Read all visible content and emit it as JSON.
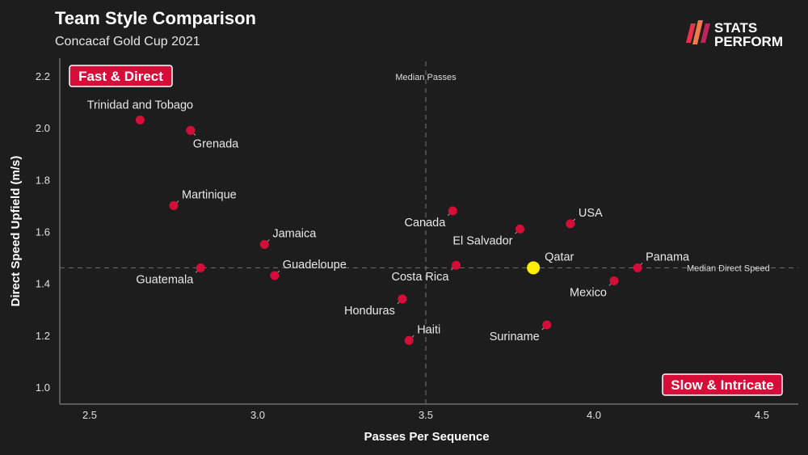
{
  "header": {
    "title": "Team Style Comparison",
    "subtitle": "Concacaf Gold Cup 2021"
  },
  "brand": {
    "line1": "STATS",
    "line2": "PERFORM",
    "accent_color": "#e8304a"
  },
  "quadrants": {
    "top_left": "Fast & Direct",
    "bottom_right": "Slow & Intricate",
    "fill_color": "#d60d38"
  },
  "medians": {
    "x_label": "Median Passes",
    "y_label": "Median Direct Speed",
    "x_value": 3.5,
    "y_value": 1.46
  },
  "chart_data": {
    "type": "scatter",
    "title": "Team Style Comparison",
    "subtitle": "Concacaf Gold Cup 2021",
    "xlabel": "Passes Per Sequence",
    "ylabel": "Direct Speed Upfield (m/s)",
    "xlim": [
      2.4,
      4.6
    ],
    "ylim": [
      0.95,
      2.25
    ],
    "xticks": [
      "2.5",
      "3.0",
      "3.5",
      "4.0",
      "4.5"
    ],
    "yticks": [
      "1.0",
      "1.2",
      "1.4",
      "1.6",
      "1.8",
      "2.0",
      "2.2"
    ],
    "grid": false,
    "point_color": "#d60d38",
    "highlight_color": "#ffee00",
    "points": [
      {
        "team": "Trinidad and Tobago",
        "x": 2.65,
        "y": 2.03,
        "label_side": "up"
      },
      {
        "team": "Grenada",
        "x": 2.8,
        "y": 1.99,
        "label_side": "down-right"
      },
      {
        "team": "Martinique",
        "x": 2.75,
        "y": 1.7,
        "label_side": "up-right"
      },
      {
        "team": "Jamaica",
        "x": 3.02,
        "y": 1.55,
        "label_side": "up-right"
      },
      {
        "team": "Guadeloupe",
        "x": 3.05,
        "y": 1.43,
        "label_side": "up-right"
      },
      {
        "team": "Guatemala",
        "x": 2.83,
        "y": 1.46,
        "label_side": "down-left"
      },
      {
        "team": "Honduras",
        "x": 3.43,
        "y": 1.34,
        "label_side": "down-left"
      },
      {
        "team": "Haiti",
        "x": 3.45,
        "y": 1.18,
        "label_side": "up-right"
      },
      {
        "team": "Costa Rica",
        "x": 3.59,
        "y": 1.47,
        "label_side": "down-left"
      },
      {
        "team": "Canada",
        "x": 3.58,
        "y": 1.68,
        "label_side": "down-left"
      },
      {
        "team": "El Salvador",
        "x": 3.78,
        "y": 1.61,
        "label_side": "down-left"
      },
      {
        "team": "USA",
        "x": 3.93,
        "y": 1.63,
        "label_side": "up-right"
      },
      {
        "team": "Qatar",
        "x": 3.82,
        "y": 1.46,
        "label_side": "up-right",
        "highlight": true
      },
      {
        "team": "Panama",
        "x": 4.13,
        "y": 1.46,
        "label_side": "up-right"
      },
      {
        "team": "Mexico",
        "x": 4.06,
        "y": 1.41,
        "label_side": "down-left"
      },
      {
        "team": "Suriname",
        "x": 3.86,
        "y": 1.24,
        "label_side": "down-left"
      }
    ]
  }
}
